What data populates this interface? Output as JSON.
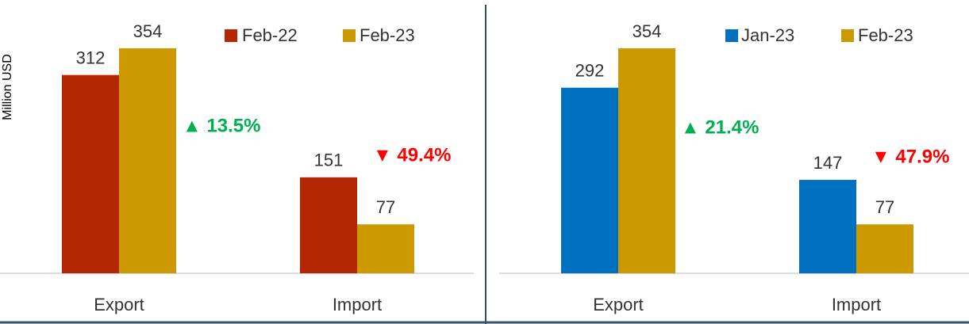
{
  "chart_data": [
    {
      "type": "bar",
      "y_label": "Million USD",
      "categories": [
        "Export",
        "Import"
      ],
      "series": [
        {
          "name": "Feb-22",
          "color": "#b32800",
          "values": [
            312,
            151
          ]
        },
        {
          "name": "Feb-23",
          "color": "#cc9a00",
          "values": [
            354,
            77
          ]
        }
      ],
      "ylim": [
        0,
        430
      ],
      "annotations": [
        {
          "text": "▲ 13.5%",
          "color": "#00b050"
        },
        {
          "text": "▼ 49.4%",
          "color": "#ff0000"
        }
      ]
    },
    {
      "type": "bar",
      "categories": [
        "Export",
        "Import"
      ],
      "series": [
        {
          "name": "Jan-23",
          "color": "#0070c0",
          "values": [
            292,
            147
          ]
        },
        {
          "name": "Feb-23",
          "color": "#cc9a00",
          "values": [
            354,
            77
          ]
        }
      ],
      "ylim": [
        0,
        430
      ],
      "annotations": [
        {
          "text": "▲ 21.4%",
          "color": "#00b050"
        },
        {
          "text": "▼ 47.9%",
          "color": "#ff0000"
        }
      ]
    }
  ]
}
